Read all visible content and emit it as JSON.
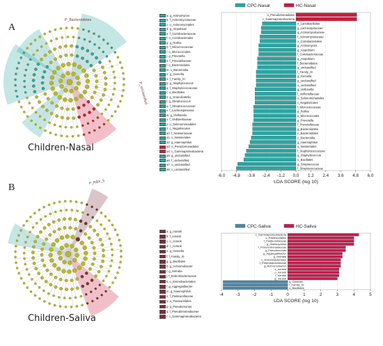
{
  "panel_A": {
    "letter": "A",
    "caption": "Children-Nasal"
  },
  "panel_B": {
    "letter": "B",
    "caption": "Children-Saliva"
  },
  "colors": {
    "cpc": "#2aa6a3",
    "hc": "#d01a3a",
    "saliva_cpc": "#4f86a8",
    "saliva_hc": "#c21f4e",
    "olive": "#b8b82a",
    "legend_brown": "#7a2f3c"
  },
  "cladogram_A_labels": [
    "P_Bacteroidetes",
    "P_unclassified"
  ],
  "cladogram_B_labels": [
    "P_RBX_5"
  ],
  "legend_A": [
    {
      "code": "a",
      "label": "a: g_Actinomyces"
    },
    {
      "code": "b",
      "label": "b: f_Actinomycetaceae"
    },
    {
      "code": "c",
      "label": "c: o_Actinomycetales"
    },
    {
      "code": "d",
      "label": "d: g_Atopobium"
    },
    {
      "code": "e",
      "label": "e: f_Coriobacteriaceae"
    },
    {
      "code": "f",
      "label": "f: o_Coriobacteriales"
    },
    {
      "code": "g",
      "label": "g: g_Rothia"
    },
    {
      "code": "h",
      "label": "h: f_Micrococcaceae"
    },
    {
      "code": "i",
      "label": "i: o_Micrococcales"
    },
    {
      "code": "j",
      "label": "j: g_Prevotella"
    },
    {
      "code": "k",
      "label": "k: f_Prevotellaceae"
    },
    {
      "code": "l",
      "label": "l: o_Bacteroidales"
    },
    {
      "code": "m",
      "label": "m: c_Bacteroidia"
    },
    {
      "code": "n",
      "label": "n: g_Gemella"
    },
    {
      "code": "o",
      "label": "o: f_Family_XI"
    },
    {
      "code": "p",
      "label": "p: g_Staphylococcus"
    },
    {
      "code": "q",
      "label": "q: f_Staphylococcaceae"
    },
    {
      "code": "r",
      "label": "r: o_Bacillales"
    },
    {
      "code": "s",
      "label": "s: g_Granulicatella"
    },
    {
      "code": "t",
      "label": "t: g_Streptococcus"
    },
    {
      "code": "u",
      "label": "u: f_Streptococcaceae"
    },
    {
      "code": "v",
      "label": "v: f_Lachnospiraceae"
    },
    {
      "code": "w",
      "label": "w: g_Veillonella"
    },
    {
      "code": "x",
      "label": "x: f_Veillonellaceae"
    },
    {
      "code": "y",
      "label": "y: o_Selenomonadales"
    },
    {
      "code": "z",
      "label": "z: c_Negativicutes"
    },
    {
      "code": "a0",
      "label": "a0: f_Neisseriaceae"
    },
    {
      "code": "a1",
      "label": "a1: o_Neisseriales"
    },
    {
      "code": "a2",
      "label": "a2: g_Haemophilus"
    },
    {
      "code": "a3",
      "label": "a3: o_Pseudomonadales"
    },
    {
      "code": "a4",
      "label": "a4: c_Gammaproteobacteria"
    },
    {
      "code": "a5",
      "label": "a5: g_unclassified"
    },
    {
      "code": "a6",
      "label": "a6: f_unclassified"
    },
    {
      "code": "a7",
      "label": "a7: o_unclassified"
    },
    {
      "code": "a8",
      "label": "a8: c_unclassified"
    }
  ],
  "legend_B": [
    {
      "label": "a: g_norank"
    },
    {
      "label": "b: f_norank"
    },
    {
      "label": "c: o_norank"
    },
    {
      "label": "d: c_norank"
    },
    {
      "label": "e: g_Gemella"
    },
    {
      "label": "f: f_Family_XI"
    },
    {
      "label": "g: g_Bacillales"
    },
    {
      "label": "h: g_Achromobacter"
    },
    {
      "label": "i: g_Serratia"
    },
    {
      "label": "j: f_Enterobacteriaceae"
    },
    {
      "label": "k: o_Enterobacteriales"
    },
    {
      "label": "l: g_Aggregatibacter"
    },
    {
      "label": "m: g_Haemophilus"
    },
    {
      "label": "n: f_Pasteurellaceae"
    },
    {
      "label": "o: o_Pasteurellales"
    },
    {
      "label": "p: g_Pseudomonas"
    },
    {
      "label": "q: f_Pseudomonadaceae"
    },
    {
      "label": "r: c_Gammaproteobacteria"
    }
  ],
  "chart_data": [
    {
      "type": "bar",
      "legend": [
        {
          "name": "CPC-Nasal",
          "color": "#2aa6a3"
        },
        {
          "name": "HC-Nasal",
          "color": "#d01a3a"
        }
      ],
      "xlabel": "LDA SCORE (log 10)",
      "xlim": [
        -6.0,
        6.0
      ],
      "ticks": [
        "-6.0",
        "-4.8",
        "-3.6",
        "-2.4",
        "-1.2",
        "0.0",
        "1.2",
        "2.4",
        "3.6",
        "4.8",
        "6.0"
      ],
      "tick_values": [
        -6.0,
        -4.8,
        -3.6,
        -2.4,
        -1.2,
        0.0,
        1.2,
        2.4,
        3.6,
        4.8,
        6.0
      ],
      "grid": true,
      "categories": [
        "o_Pseudomonadales",
        "c_Gammaproteobacteria",
        "o_Lactobacillales",
        "g_Lachnospiraceae",
        "g_Actinomycetaceae",
        "f_Actinomycetaceae",
        "o_Coriobacteriales",
        "g_Actinomyces",
        "g_Atopobium",
        "f_Coriobacteriaceae",
        "g_Atopobium",
        "f_Bacteroidales",
        "g_unclassified",
        "f_Family_XI",
        "g_Gemella",
        "g_unclassified",
        "o_unclassified",
        "g_Veillonella",
        "f_Veillonellaceae",
        "o_Selenomonadales",
        "c_Negativicutes",
        "f_Micrococcaceae",
        "g_Rothia",
        "o_Micrococcales",
        "g_Prevotella",
        "f_Prevotellaceae",
        "g_Bacteroidales",
        "o_Bacteroidales",
        "c_Bacteroidia",
        "g_Haemophilus",
        "o_Neisseriales",
        "f_Staphylococcaceae",
        "g_Staphylococcus",
        "o_Bacillales",
        "g_Streptococcus",
        "f_Streptococcaceae"
      ],
      "values": [
        4.9,
        4.9,
        -2.7,
        -2.8,
        -2.8,
        -2.9,
        -2.9,
        -3.0,
        -3.0,
        -3.0,
        -3.1,
        -3.1,
        -3.1,
        -3.2,
        -3.2,
        -3.2,
        -3.2,
        -3.3,
        -3.3,
        -3.3,
        -3.3,
        -3.4,
        -3.4,
        -3.4,
        -3.4,
        -3.5,
        -3.5,
        -3.5,
        -3.6,
        -3.7,
        -3.8,
        -4.0,
        -4.1,
        -4.2,
        -4.7,
        -4.8
      ]
    },
    {
      "type": "bar",
      "legend": [
        {
          "name": "CPC-Saliva",
          "color": "#4f86a8"
        },
        {
          "name": "HC-Saliva",
          "color": "#c21f4e"
        }
      ],
      "xlabel": "LDA SCORE (log 10)",
      "xlim": [
        -4,
        5
      ],
      "ticks": [
        "-4",
        "-3",
        "-2",
        "-1",
        "0",
        "1",
        "2",
        "3",
        "4",
        "5"
      ],
      "tick_values": [
        -4,
        -3,
        -2,
        -1,
        0,
        1,
        2,
        3,
        4,
        5
      ],
      "grid": true,
      "categories": [
        "c_Gammaproteobacteria",
        "o_Pasteurellales",
        "f_Pasteurellaceae",
        "g_Haemophilus",
        "f_Pseudomonadaceae",
        "g_Pseudomonas",
        "g_Aggregatibacter",
        "g_Serratia",
        "o_Enterobacteriales",
        "f_Enterobacteriaceae",
        "g_Achromobacter",
        "c_norank",
        "o_norank",
        "f_norank",
        "g_norank",
        "g_Gemella",
        "f_Family_XI",
        "o_Bacillales"
      ],
      "values": [
        4.3,
        4.0,
        4.0,
        4.0,
        3.5,
        3.5,
        3.3,
        3.3,
        3.2,
        3.2,
        3.2,
        3.1,
        3.1,
        3.1,
        3.0,
        -3.9,
        -3.9,
        -3.9
      ]
    }
  ]
}
